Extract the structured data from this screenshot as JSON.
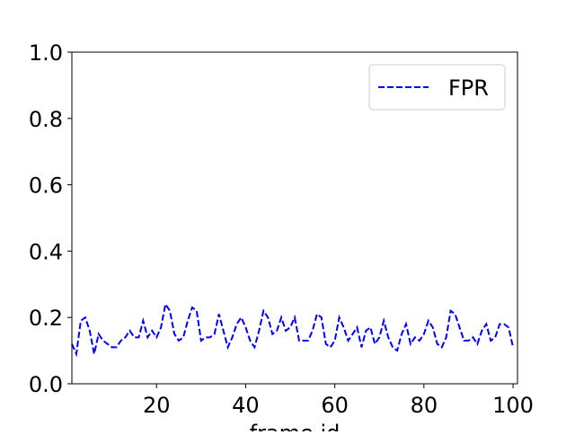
{
  "chart_data": {
    "type": "line",
    "xlabel": "frame id",
    "x": [
      1,
      2,
      3,
      4,
      5,
      6,
      7,
      8,
      9,
      10,
      11,
      12,
      13,
      14,
      15,
      16,
      17,
      18,
      19,
      20,
      21,
      22,
      23,
      24,
      25,
      26,
      27,
      28,
      29,
      30,
      31,
      32,
      33,
      34,
      35,
      36,
      37,
      38,
      39,
      40,
      41,
      42,
      43,
      44,
      45,
      46,
      47,
      48,
      49,
      50,
      51,
      52,
      53,
      54,
      55,
      56,
      57,
      58,
      59,
      60,
      61,
      62,
      63,
      64,
      65,
      66,
      67,
      68,
      69,
      70,
      71,
      72,
      73,
      74,
      75,
      76,
      77,
      78,
      79,
      80,
      81,
      82,
      83,
      84,
      85,
      86,
      87,
      88,
      89,
      90,
      91,
      92,
      93,
      94,
      95,
      96,
      97,
      98,
      99,
      100
    ],
    "series": [
      {
        "name": "FPR",
        "color": "#0000ff",
        "dash": true,
        "values": [
          0.12,
          0.09,
          0.19,
          0.2,
          0.16,
          0.09,
          0.15,
          0.13,
          0.12,
          0.11,
          0.11,
          0.13,
          0.14,
          0.16,
          0.14,
          0.14,
          0.19,
          0.14,
          0.16,
          0.14,
          0.17,
          0.24,
          0.22,
          0.15,
          0.13,
          0.14,
          0.19,
          0.23,
          0.22,
          0.13,
          0.14,
          0.14,
          0.15,
          0.21,
          0.16,
          0.11,
          0.14,
          0.18,
          0.2,
          0.17,
          0.13,
          0.11,
          0.16,
          0.22,
          0.2,
          0.15,
          0.16,
          0.2,
          0.16,
          0.17,
          0.2,
          0.13,
          0.13,
          0.13,
          0.16,
          0.21,
          0.2,
          0.12,
          0.11,
          0.13,
          0.2,
          0.17,
          0.13,
          0.15,
          0.17,
          0.11,
          0.16,
          0.17,
          0.12,
          0.14,
          0.19,
          0.14,
          0.11,
          0.1,
          0.15,
          0.18,
          0.12,
          0.14,
          0.13,
          0.15,
          0.19,
          0.17,
          0.12,
          0.11,
          0.14,
          0.22,
          0.21,
          0.17,
          0.13,
          0.13,
          0.14,
          0.12,
          0.16,
          0.18,
          0.13,
          0.14,
          0.18,
          0.18,
          0.17,
          0.11
        ]
      }
    ],
    "xlim": [
      1,
      101
    ],
    "xticks": [
      20,
      40,
      60,
      80,
      100
    ],
    "ylim": [
      0,
      1
    ],
    "yticks": [
      {
        "value": 0,
        "label": "0.0"
      },
      0.2,
      0.4,
      0.6,
      0.8,
      {
        "value": 1,
        "label": "1.0"
      }
    ],
    "legend": "upper right"
  }
}
